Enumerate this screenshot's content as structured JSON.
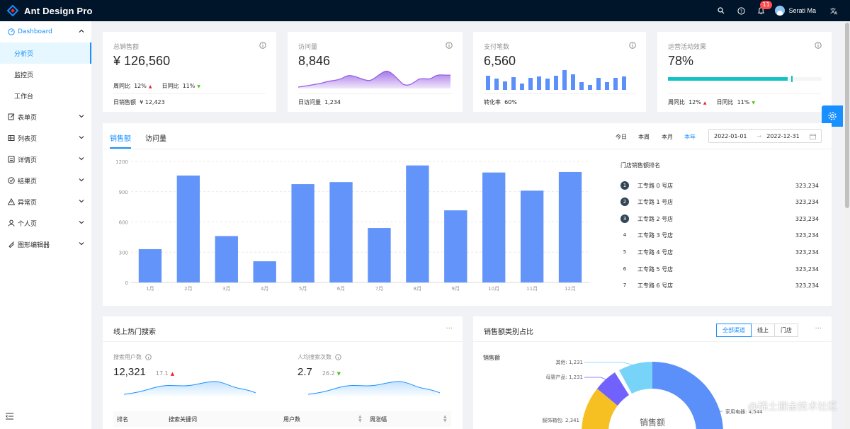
{
  "header": {
    "title": "Ant Design Pro",
    "notice_count": "11",
    "username": "Serati Ma"
  },
  "sidebar": {
    "items": [
      {
        "label": "Dashboard",
        "icon": "dashboard-icon",
        "open": true
      },
      {
        "label": "分析页",
        "sub": true,
        "active": true
      },
      {
        "label": "监控页",
        "sub": true
      },
      {
        "label": "工作台",
        "sub": true
      },
      {
        "label": "表单页",
        "icon": "form-icon"
      },
      {
        "label": "列表页",
        "icon": "table-icon"
      },
      {
        "label": "详情页",
        "icon": "profile-icon"
      },
      {
        "label": "结果页",
        "icon": "check-circle-icon"
      },
      {
        "label": "异常页",
        "icon": "warning-icon"
      },
      {
        "label": "个人页",
        "icon": "user-icon"
      },
      {
        "label": "图形编辑器",
        "icon": "highlight-icon"
      }
    ]
  },
  "stats": [
    {
      "title": "总销售额",
      "value": "¥ 126,560",
      "wow_label": "周同比",
      "wow": "12%",
      "dod_label": "日同比",
      "dod": "11%",
      "footer_label": "日销售额",
      "footer_value": "¥ 12,423"
    },
    {
      "title": "访问量",
      "value": "8,846",
      "footer_label": "日访问量",
      "footer_value": "1,234"
    },
    {
      "title": "支付笔数",
      "value": "6,560",
      "footer_label": "转化率",
      "footer_value": "60%"
    },
    {
      "title": "运营活动效果",
      "value": "78%",
      "progress": 0.78,
      "wow_label": "周同比",
      "wow": "12%",
      "dod_label": "日同比",
      "dod": "11%"
    }
  ],
  "sales": {
    "tabs": [
      "销售额",
      "访问量"
    ],
    "ranges": [
      "今日",
      "本周",
      "本月",
      "本年"
    ],
    "active_range": "本年",
    "date_start": "2022-01-01",
    "date_end": "2022-12-31",
    "rank_title": "门店销售额排名",
    "rank": [
      {
        "idx": "1",
        "name": "工专路 0 号店",
        "value": "323,234"
      },
      {
        "idx": "2",
        "name": "工专路 1 号店",
        "value": "323,234"
      },
      {
        "idx": "3",
        "name": "工专路 2 号店",
        "value": "323,234"
      },
      {
        "idx": "4",
        "name": "工专路 3 号店",
        "value": "323,234"
      },
      {
        "idx": "5",
        "name": "工专路 4 号店",
        "value": "323,234"
      },
      {
        "idx": "6",
        "name": "工专路 5 号店",
        "value": "323,234"
      },
      {
        "idx": "7",
        "name": "工专路 6 号店",
        "value": "323,234"
      }
    ]
  },
  "chart_data": {
    "type": "bar",
    "categories": [
      "1月",
      "2月",
      "3月",
      "4月",
      "5月",
      "6月",
      "7月",
      "8月",
      "9月",
      "10月",
      "11月",
      "12月"
    ],
    "values": [
      330,
      1060,
      460,
      210,
      975,
      995,
      540,
      1160,
      715,
      1090,
      910,
      1095
    ],
    "ylim": [
      0,
      1200
    ],
    "yticks": [
      "0",
      "300",
      "600",
      "900",
      "1200"
    ],
    "grid": true,
    "color": "#6394f9"
  },
  "search": {
    "title": "线上热门搜索",
    "users_label": "搜索用户数",
    "users_value": "12,321",
    "users_delta": "17.1",
    "per_label": "人均搜索次数",
    "per_value": "2.7",
    "per_delta": "26.2",
    "columns": [
      "排名",
      "搜索关键词",
      "用户数",
      "周涨幅"
    ]
  },
  "category": {
    "title": "销售额类别占比",
    "buttons": [
      "全部渠道",
      "线上",
      "门店"
    ],
    "subtitle": "销售额",
    "center_label": "销售额",
    "labels": [
      "其他: 1,231",
      "母婴产品: 1,231",
      "服饰箱包: 2,341",
      "家用电器: 4,544"
    ]
  },
  "watermark": "@稀土掘金技术社区"
}
